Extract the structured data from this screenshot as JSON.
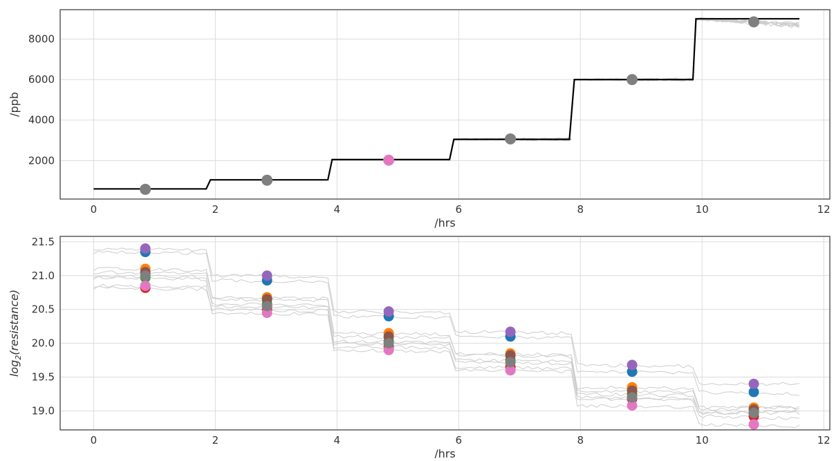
{
  "chart_data": [
    {
      "type": "line",
      "xlabel": "/hrs",
      "ylabel": "/ppb",
      "xlim": [
        -0.55,
        12.1
      ],
      "ylim": [
        100,
        9450
      ],
      "xticks": [
        0,
        2,
        4,
        6,
        8,
        10,
        12
      ],
      "yticks": [
        2000,
        4000,
        6000,
        8000
      ],
      "grid": true,
      "setpoint_line": {
        "color": "#000000",
        "x": [
          0,
          1.85,
          1.92,
          3.85,
          3.92,
          5.85,
          5.92,
          7.82,
          7.9,
          9.85,
          9.9,
          11.6
        ],
        "y": [
          600,
          600,
          1050,
          1050,
          2050,
          2050,
          3050,
          3050,
          6000,
          6000,
          9000,
          9000
        ]
      },
      "measured_traces": {
        "color": "#cccccc",
        "segments": [
          {
            "x": [
              5.92,
              7.85
            ],
            "y": [
              3050,
              3050
            ]
          },
          {
            "x": [
              7.9,
              9.85
            ],
            "y": [
              6000,
              6000
            ]
          },
          {
            "x": [
              9.9,
              11.6
            ],
            "y": [
              9000,
              8700
            ]
          }
        ]
      },
      "points": {
        "x": [
          0.85,
          2.85,
          4.85,
          6.85,
          8.85,
          10.85
        ],
        "y": [
          580,
          1030,
          2020,
          3070,
          6000,
          8850
        ],
        "colors": [
          "#7f7f7f",
          "#7f7f7f",
          "#e377c2",
          "#7f7f7f",
          "#7f7f7f",
          "#7f7f7f"
        ]
      }
    },
    {
      "type": "line",
      "xlabel": "/hrs",
      "ylabel": "log2(resistance)",
      "xlim": [
        -0.55,
        12.1
      ],
      "ylim": [
        18.72,
        21.58
      ],
      "xticks": [
        0,
        2,
        4,
        6,
        8,
        10,
        12
      ],
      "yticks": [
        19.0,
        19.5,
        20.0,
        20.5,
        21.0,
        21.5
      ],
      "grid": true,
      "series": [
        {
          "color": "#1f77b4",
          "x": [
            0.85,
            2.85,
            4.85,
            6.85,
            8.85,
            10.85
          ],
          "y": [
            21.35,
            20.93,
            20.4,
            20.1,
            19.58,
            19.28
          ]
        },
        {
          "color": "#ff7f0e",
          "x": [
            0.85,
            2.85,
            4.85,
            6.85,
            8.85,
            10.85
          ],
          "y": [
            21.1,
            20.68,
            20.15,
            19.85,
            19.35,
            19.05
          ]
        },
        {
          "color": "#2ca02c",
          "x": [
            0.85,
            2.85,
            4.85,
            6.85,
            8.85,
            10.85
          ],
          "y": [
            20.97,
            20.58,
            20.03,
            19.75,
            19.25,
            18.97
          ]
        },
        {
          "color": "#d62728",
          "x": [
            0.85,
            2.85,
            4.85,
            6.85,
            8.85,
            10.85
          ],
          "y": [
            20.82,
            20.5,
            19.95,
            19.65,
            19.18,
            18.92
          ]
        },
        {
          "color": "#9467bd",
          "x": [
            0.85,
            2.85,
            4.85,
            6.85,
            8.85,
            10.85
          ],
          "y": [
            21.4,
            21.0,
            20.47,
            20.17,
            19.68,
            19.4
          ]
        },
        {
          "color": "#8c564b",
          "x": [
            0.85,
            2.85,
            4.85,
            6.85,
            8.85,
            10.85
          ],
          "y": [
            21.05,
            20.65,
            20.1,
            19.82,
            19.3,
            19.02
          ]
        },
        {
          "color": "#e377c2",
          "x": [
            0.85,
            2.85,
            4.85,
            6.85,
            8.85,
            10.85
          ],
          "y": [
            20.85,
            20.45,
            19.9,
            19.6,
            19.08,
            18.8
          ]
        },
        {
          "color": "#7f7f7f",
          "x": [
            0.85,
            2.85,
            4.85,
            6.85,
            8.85,
            10.85
          ],
          "y": [
            21.0,
            20.55,
            20.0,
            19.72,
            19.2,
            18.97
          ]
        }
      ],
      "trace_color": "#cccccc"
    }
  ]
}
